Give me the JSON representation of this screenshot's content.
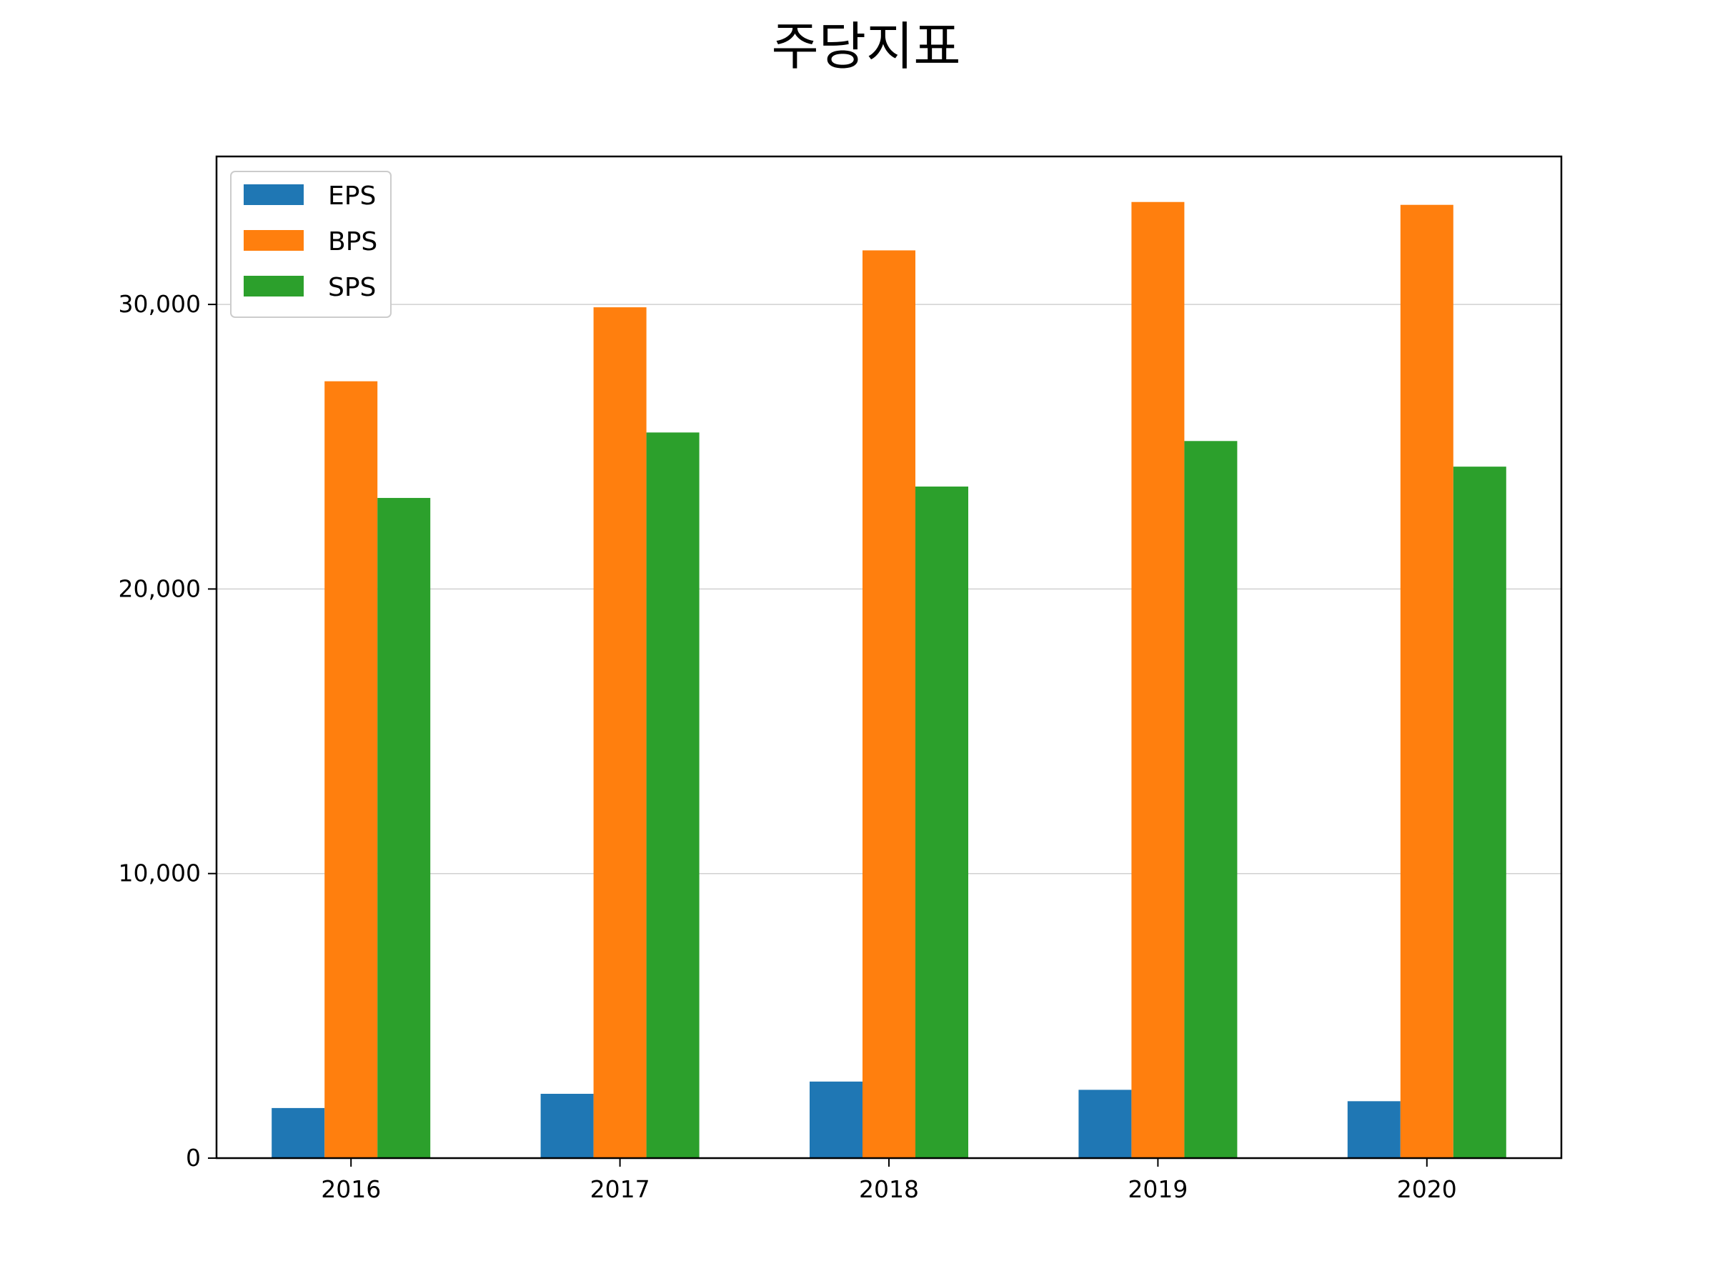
{
  "chart_data": {
    "type": "bar",
    "title": "주당지표",
    "xlabel": "",
    "ylabel": "",
    "categories": [
      "2016",
      "2017",
      "2018",
      "2019",
      "2020"
    ],
    "series": [
      {
        "name": "EPS",
        "color": "#1f77b4",
        "values": [
          1760,
          2260,
          2690,
          2400,
          2000
        ]
      },
      {
        "name": "BPS",
        "color": "#ff7f0e",
        "values": [
          27300,
          29900,
          31900,
          33600,
          33500
        ]
      },
      {
        "name": "SPS",
        "color": "#2ca02c",
        "values": [
          23200,
          25500,
          23600,
          25200,
          24300
        ]
      }
    ],
    "ylim": [
      0,
      35200
    ],
    "yticks": [
      0,
      10000,
      20000,
      30000
    ],
    "ytick_labels": [
      "0",
      "10,000",
      "20,000",
      "30,000"
    ],
    "grid": "y-major",
    "legend_position": "upper-left"
  }
}
